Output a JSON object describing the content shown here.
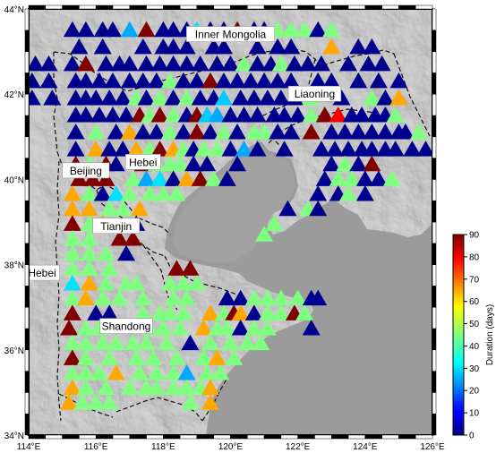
{
  "map": {
    "lon_range": [
      114,
      126
    ],
    "lat_range": [
      34,
      44
    ],
    "x_ticks": [
      "114°E",
      "116°E",
      "118°E",
      "120°E",
      "122°E",
      "124°E",
      "126°E"
    ],
    "y_ticks": [
      "34°N",
      "36°N",
      "38°N",
      "40°N",
      "42°N",
      "44°N"
    ],
    "x_tick_values": [
      114,
      116,
      118,
      120,
      122,
      124,
      126
    ],
    "y_tick_values": [
      34,
      36,
      38,
      40,
      42,
      44
    ]
  },
  "places": [
    {
      "name": "Inner Mongolia",
      "lon": 120.0,
      "lat": 43.4
    },
    {
      "name": "Liaoning",
      "lon": 122.5,
      "lat": 42.0
    },
    {
      "name": "Beijing",
      "lon": 115.7,
      "lat": 40.2
    },
    {
      "name": "Hebei",
      "lon": 117.4,
      "lat": 40.4
    },
    {
      "name": "Tianjin",
      "lon": 116.6,
      "lat": 38.9
    },
    {
      "name": "Hebei",
      "lon": 114.4,
      "lat": 37.8
    },
    {
      "name": "Shandong",
      "lon": 116.9,
      "lat": 36.55
    }
  ],
  "colorbar": {
    "label": "Duration (days)",
    "min": 0,
    "max": 90,
    "ticks": [
      "0",
      "10",
      "20",
      "30",
      "40",
      "50",
      "60",
      "70",
      "80",
      "90"
    ]
  },
  "stations": [
    [
      115.3,
      43.5,
      0
    ],
    [
      115.7,
      43.5,
      0
    ],
    [
      116.2,
      43.5,
      0
    ],
    [
      116.5,
      43.5,
      0
    ],
    [
      117.0,
      43.5,
      25
    ],
    [
      117.5,
      43.5,
      90
    ],
    [
      118.0,
      43.5,
      0
    ],
    [
      118.3,
      43.5,
      0
    ],
    [
      118.7,
      43.5,
      0
    ],
    [
      119.0,
      43.5,
      30
    ],
    [
      119.4,
      43.5,
      0
    ],
    [
      119.8,
      43.5,
      0
    ],
    [
      120.2,
      43.5,
      90
    ],
    [
      120.7,
      43.5,
      0
    ],
    [
      121.0,
      43.5,
      0
    ],
    [
      121.4,
      43.5,
      45
    ],
    [
      121.8,
      43.5,
      45
    ],
    [
      122.2,
      43.5,
      45
    ],
    [
      122.6,
      43.5,
      0
    ],
    [
      123.0,
      43.5,
      45
    ],
    [
      115.5,
      43.1,
      0
    ],
    [
      116.2,
      43.1,
      0
    ],
    [
      117.4,
      43.1,
      0
    ],
    [
      118.0,
      43.1,
      0
    ],
    [
      118.3,
      43.1,
      0
    ],
    [
      118.7,
      43.1,
      0
    ],
    [
      119.5,
      43.1,
      0
    ],
    [
      119.8,
      43.1,
      0
    ],
    [
      120.8,
      43.1,
      0
    ],
    [
      121.4,
      43.1,
      0
    ],
    [
      121.8,
      43.1,
      0
    ],
    [
      123.0,
      43.1,
      65
    ],
    [
      123.8,
      43.1,
      0
    ],
    [
      124.2,
      43.1,
      0
    ],
    [
      114.2,
      42.7,
      0
    ],
    [
      114.6,
      42.7,
      0
    ],
    [
      115.3,
      42.7,
      0
    ],
    [
      115.7,
      42.7,
      90
    ],
    [
      116.3,
      42.7,
      0
    ],
    [
      116.7,
      42.7,
      0
    ],
    [
      117.0,
      42.7,
      0
    ],
    [
      117.5,
      42.7,
      0
    ],
    [
      117.9,
      42.7,
      0
    ],
    [
      118.3,
      42.7,
      0
    ],
    [
      118.7,
      42.7,
      0
    ],
    [
      119.1,
      42.7,
      0
    ],
    [
      119.6,
      42.7,
      0
    ],
    [
      120.0,
      42.7,
      0
    ],
    [
      120.4,
      42.7,
      45
    ],
    [
      120.8,
      42.7,
      0
    ],
    [
      121.2,
      42.7,
      0
    ],
    [
      121.5,
      42.7,
      45
    ],
    [
      121.9,
      42.7,
      0
    ],
    [
      122.3,
      42.7,
      0
    ],
    [
      122.7,
      42.7,
      0
    ],
    [
      123.5,
      42.7,
      0
    ],
    [
      124.1,
      42.7,
      0
    ],
    [
      124.5,
      42.7,
      0
    ],
    [
      114.1,
      42.3,
      0
    ],
    [
      114.6,
      42.3,
      0
    ],
    [
      115.4,
      42.3,
      0
    ],
    [
      115.7,
      42.3,
      0
    ],
    [
      116.1,
      42.3,
      0
    ],
    [
      116.5,
      42.3,
      0
    ],
    [
      117.0,
      42.3,
      0
    ],
    [
      117.4,
      42.3,
      0
    ],
    [
      117.8,
      42.3,
      0
    ],
    [
      118.2,
      42.3,
      45
    ],
    [
      118.6,
      42.3,
      0
    ],
    [
      119.0,
      42.3,
      0
    ],
    [
      119.4,
      42.3,
      90
    ],
    [
      119.8,
      42.3,
      0
    ],
    [
      120.2,
      42.3,
      0
    ],
    [
      120.6,
      42.3,
      0
    ],
    [
      121.0,
      42.3,
      0
    ],
    [
      121.4,
      42.3,
      0
    ],
    [
      121.8,
      42.3,
      0
    ],
    [
      122.6,
      42.3,
      0
    ],
    [
      123.0,
      42.3,
      0
    ],
    [
      123.8,
      42.3,
      0
    ],
    [
      124.4,
      42.3,
      0
    ],
    [
      125.0,
      42.3,
      0
    ],
    [
      114.1,
      41.9,
      0
    ],
    [
      114.7,
      41.9,
      0
    ],
    [
      115.4,
      41.9,
      0
    ],
    [
      115.7,
      41.9,
      0
    ],
    [
      116.0,
      41.9,
      0
    ],
    [
      116.4,
      41.9,
      0
    ],
    [
      116.8,
      41.9,
      0
    ],
    [
      117.2,
      41.9,
      45
    ],
    [
      117.5,
      41.9,
      0
    ],
    [
      117.9,
      41.9,
      45
    ],
    [
      118.3,
      41.9,
      0
    ],
    [
      118.7,
      41.9,
      45
    ],
    [
      119.1,
      41.9,
      0
    ],
    [
      119.5,
      41.9,
      0
    ],
    [
      119.8,
      41.9,
      28
    ],
    [
      120.3,
      41.9,
      0
    ],
    [
      120.7,
      41.9,
      0
    ],
    [
      121.1,
      41.9,
      0
    ],
    [
      121.5,
      41.9,
      0
    ],
    [
      121.9,
      41.9,
      0
    ],
    [
      122.4,
      41.9,
      45
    ],
    [
      123.3,
      41.9,
      0
    ],
    [
      124.2,
      41.9,
      45
    ],
    [
      124.6,
      41.9,
      0
    ],
    [
      125.0,
      41.9,
      65
    ],
    [
      115.4,
      41.5,
      0
    ],
    [
      115.7,
      41.5,
      0
    ],
    [
      116.1,
      41.5,
      0
    ],
    [
      116.5,
      41.5,
      0
    ],
    [
      116.9,
      41.5,
      0
    ],
    [
      117.3,
      41.5,
      90
    ],
    [
      117.6,
      41.5,
      45
    ],
    [
      117.9,
      41.5,
      90
    ],
    [
      118.3,
      41.5,
      45
    ],
    [
      118.7,
      41.5,
      0
    ],
    [
      119.0,
      41.5,
      90
    ],
    [
      119.3,
      41.5,
      28
    ],
    [
      119.6,
      41.5,
      25
    ],
    [
      120.0,
      41.5,
      0
    ],
    [
      120.4,
      41.5,
      0
    ],
    [
      120.8,
      41.5,
      0
    ],
    [
      121.3,
      41.5,
      0
    ],
    [
      121.6,
      41.5,
      0
    ],
    [
      122.0,
      41.5,
      0
    ],
    [
      122.4,
      41.5,
      45
    ],
    [
      122.8,
      41.5,
      90
    ],
    [
      123.2,
      41.5,
      80
    ],
    [
      123.6,
      41.5,
      0
    ],
    [
      123.9,
      41.5,
      0
    ],
    [
      124.3,
      41.5,
      0
    ],
    [
      124.6,
      41.5,
      0
    ],
    [
      124.9,
      41.5,
      45
    ],
    [
      115.4,
      41.1,
      0
    ],
    [
      116.0,
      41.1,
      45
    ],
    [
      116.6,
      41.1,
      0
    ],
    [
      117.0,
      41.1,
      65
    ],
    [
      117.4,
      41.1,
      0
    ],
    [
      117.8,
      41.1,
      0
    ],
    [
      118.2,
      41.1,
      45
    ],
    [
      118.6,
      41.1,
      0
    ],
    [
      119.0,
      41.1,
      90
    ],
    [
      119.4,
      41.1,
      0
    ],
    [
      119.8,
      41.1,
      45
    ],
    [
      120.2,
      41.1,
      0
    ],
    [
      120.7,
      41.1,
      45
    ],
    [
      121.0,
      41.1,
      45
    ],
    [
      121.4,
      41.1,
      0
    ],
    [
      121.8,
      41.1,
      0
    ],
    [
      122.4,
      41.1,
      90
    ],
    [
      123.0,
      41.1,
      0
    ],
    [
      123.4,
      41.1,
      0
    ],
    [
      123.8,
      41.1,
      0
    ],
    [
      124.2,
      41.1,
      0
    ],
    [
      124.6,
      41.1,
      0
    ],
    [
      125.0,
      41.1,
      0
    ],
    [
      125.2,
      41.1,
      0
    ],
    [
      125.6,
      41.1,
      45
    ],
    [
      115.4,
      40.7,
      0
    ],
    [
      116.0,
      40.7,
      65
    ],
    [
      116.4,
      40.7,
      0
    ],
    [
      116.8,
      40.7,
      0
    ],
    [
      117.2,
      40.7,
      65
    ],
    [
      117.6,
      40.7,
      45
    ],
    [
      117.9,
      40.7,
      90
    ],
    [
      118.3,
      40.7,
      65
    ],
    [
      118.6,
      40.7,
      45
    ],
    [
      118.9,
      40.7,
      0
    ],
    [
      119.2,
      40.7,
      45
    ],
    [
      119.6,
      40.7,
      45
    ],
    [
      120.0,
      40.7,
      0
    ],
    [
      120.4,
      40.7,
      25
    ],
    [
      120.8,
      40.7,
      0
    ],
    [
      121.6,
      40.7,
      0
    ],
    [
      122.7,
      40.7,
      0
    ],
    [
      123.1,
      40.7,
      0
    ],
    [
      123.5,
      40.7,
      0
    ],
    [
      123.9,
      40.7,
      0
    ],
    [
      124.2,
      40.7,
      0
    ],
    [
      124.6,
      40.7,
      0
    ],
    [
      124.9,
      40.7,
      0
    ],
    [
      125.4,
      40.7,
      0
    ],
    [
      125.8,
      40.7,
      0
    ],
    [
      115.4,
      40.35,
      90
    ],
    [
      115.8,
      40.35,
      45
    ],
    [
      116.3,
      40.35,
      90
    ],
    [
      116.6,
      40.35,
      0
    ],
    [
      117.4,
      40.35,
      90
    ],
    [
      117.8,
      40.35,
      45
    ],
    [
      118.2,
      40.35,
      45
    ],
    [
      118.5,
      40.35,
      45
    ],
    [
      118.9,
      40.35,
      0
    ],
    [
      119.3,
      40.35,
      0
    ],
    [
      120.2,
      40.35,
      0
    ],
    [
      123.0,
      40.35,
      0
    ],
    [
      123.4,
      40.35,
      45
    ],
    [
      123.8,
      40.35,
      0
    ],
    [
      124.2,
      40.35,
      90
    ],
    [
      115.5,
      40.0,
      90
    ],
    [
      115.9,
      40.0,
      90
    ],
    [
      116.3,
      40.0,
      90
    ],
    [
      117.1,
      40.0,
      45
    ],
    [
      117.5,
      40.0,
      25
    ],
    [
      117.9,
      40.0,
      30
    ],
    [
      118.3,
      40.0,
      0
    ],
    [
      118.7,
      40.0,
      65
    ],
    [
      119.1,
      40.0,
      90
    ],
    [
      119.5,
      40.0,
      45
    ],
    [
      119.9,
      40.0,
      0
    ],
    [
      122.8,
      40.0,
      0
    ],
    [
      123.2,
      40.0,
      45
    ],
    [
      123.6,
      40.0,
      45
    ],
    [
      124.0,
      40.0,
      0
    ],
    [
      124.4,
      40.0,
      0
    ],
    [
      124.8,
      40.0,
      45
    ],
    [
      115.3,
      39.65,
      65
    ],
    [
      115.8,
      39.65,
      45
    ],
    [
      116.2,
      39.65,
      0
    ],
    [
      116.6,
      39.65,
      30
    ],
    [
      117.0,
      39.65,
      45
    ],
    [
      117.6,
      39.65,
      45
    ],
    [
      118.0,
      39.65,
      45
    ],
    [
      118.4,
      39.65,
      45
    ],
    [
      122.6,
      39.65,
      0
    ],
    [
      123.2,
      39.65,
      0
    ],
    [
      123.5,
      39.65,
      45
    ],
    [
      124.0,
      39.65,
      0
    ],
    [
      115.3,
      39.3,
      65
    ],
    [
      115.8,
      39.3,
      65
    ],
    [
      116.4,
      39.3,
      45
    ],
    [
      116.8,
      39.3,
      45
    ],
    [
      117.3,
      39.3,
      65
    ],
    [
      121.7,
      39.3,
      0
    ],
    [
      122.3,
      39.3,
      45
    ],
    [
      122.6,
      39.3,
      0
    ],
    [
      115.3,
      38.95,
      90
    ],
    [
      115.8,
      38.95,
      45
    ],
    [
      116.2,
      38.95,
      65
    ],
    [
      117.2,
      38.95,
      0
    ],
    [
      121.3,
      38.95,
      45
    ],
    [
      115.3,
      38.6,
      45
    ],
    [
      115.8,
      38.6,
      45
    ],
    [
      116.7,
      38.6,
      90
    ],
    [
      117.1,
      38.6,
      90
    ],
    [
      121.0,
      38.7,
      45
    ],
    [
      115.3,
      38.25,
      45
    ],
    [
      115.8,
      38.25,
      45
    ],
    [
      116.3,
      38.25,
      45
    ],
    [
      116.9,
      38.25,
      0
    ],
    [
      115.3,
      37.9,
      45
    ],
    [
      115.8,
      37.9,
      45
    ],
    [
      116.4,
      37.9,
      45
    ],
    [
      118.4,
      37.9,
      90
    ],
    [
      118.8,
      37.9,
      90
    ],
    [
      115.3,
      37.55,
      30
    ],
    [
      115.8,
      37.55,
      65
    ],
    [
      116.3,
      37.55,
      45
    ],
    [
      116.9,
      37.55,
      45
    ],
    [
      117.2,
      37.55,
      45
    ],
    [
      118.2,
      37.55,
      45
    ],
    [
      118.6,
      37.55,
      45
    ],
    [
      119.0,
      37.55,
      45
    ],
    [
      115.3,
      37.2,
      45
    ],
    [
      115.7,
      37.2,
      65
    ],
    [
      116.2,
      37.2,
      45
    ],
    [
      116.7,
      37.2,
      45
    ],
    [
      117.4,
      37.2,
      45
    ],
    [
      118.3,
      37.2,
      45
    ],
    [
      118.7,
      37.2,
      45
    ],
    [
      119.9,
      37.2,
      0
    ],
    [
      120.3,
      37.2,
      0
    ],
    [
      120.7,
      37.2,
      45
    ],
    [
      121.1,
      37.2,
      45
    ],
    [
      121.5,
      37.2,
      45
    ],
    [
      122.0,
      37.2,
      45
    ],
    [
      122.4,
      37.2,
      0
    ],
    [
      122.6,
      37.2,
      0
    ],
    [
      115.3,
      36.85,
      90
    ],
    [
      116.0,
      36.85,
      0
    ],
    [
      116.4,
      36.85,
      0
    ],
    [
      117.4,
      36.85,
      45
    ],
    [
      117.9,
      36.85,
      45
    ],
    [
      118.2,
      36.85,
      45
    ],
    [
      118.6,
      36.85,
      45
    ],
    [
      119.4,
      36.85,
      65
    ],
    [
      119.8,
      36.85,
      45
    ],
    [
      120.1,
      36.85,
      90
    ],
    [
      120.3,
      36.85,
      65
    ],
    [
      120.7,
      36.85,
      0
    ],
    [
      121.1,
      36.85,
      45
    ],
    [
      121.5,
      36.85,
      45
    ],
    [
      121.9,
      36.85,
      90
    ],
    [
      122.2,
      36.85,
      45
    ],
    [
      115.2,
      36.5,
      90
    ],
    [
      115.7,
      36.5,
      45
    ],
    [
      116.1,
      36.5,
      45
    ],
    [
      117.6,
      36.5,
      45
    ],
    [
      118.0,
      36.5,
      45
    ],
    [
      118.5,
      36.5,
      45
    ],
    [
      119.2,
      36.5,
      65
    ],
    [
      119.6,
      36.5,
      45
    ],
    [
      119.9,
      36.5,
      45
    ],
    [
      120.3,
      36.5,
      0
    ],
    [
      120.7,
      36.5,
      45
    ],
    [
      121.1,
      36.5,
      45
    ],
    [
      122.4,
      36.5,
      0
    ],
    [
      115.3,
      36.15,
      45
    ],
    [
      115.7,
      36.15,
      45
    ],
    [
      116.2,
      36.15,
      45
    ],
    [
      116.6,
      36.15,
      45
    ],
    [
      117.1,
      36.15,
      45
    ],
    [
      117.5,
      36.15,
      45
    ],
    [
      118.1,
      36.15,
      45
    ],
    [
      118.8,
      36.15,
      0
    ],
    [
      119.4,
      36.15,
      45
    ],
    [
      120.0,
      36.15,
      45
    ],
    [
      120.5,
      36.15,
      45
    ],
    [
      120.9,
      36.15,
      45
    ],
    [
      115.3,
      35.8,
      90
    ],
    [
      115.7,
      35.8,
      45
    ],
    [
      116.4,
      35.8,
      45
    ],
    [
      117.2,
      35.8,
      45
    ],
    [
      117.7,
      35.8,
      45
    ],
    [
      118.4,
      35.8,
      45
    ],
    [
      119.2,
      35.8,
      45
    ],
    [
      119.6,
      35.8,
      65
    ],
    [
      120.1,
      35.8,
      45
    ],
    [
      115.3,
      35.45,
      45
    ],
    [
      115.7,
      35.45,
      45
    ],
    [
      116.1,
      35.45,
      45
    ],
    [
      116.6,
      35.45,
      65
    ],
    [
      117.3,
      35.45,
      45
    ],
    [
      117.8,
      35.45,
      45
    ],
    [
      118.3,
      35.45,
      45
    ],
    [
      118.7,
      35.45,
      25
    ],
    [
      119.3,
      35.45,
      45
    ],
    [
      119.7,
      35.45,
      45
    ],
    [
      115.3,
      35.1,
      65
    ],
    [
      115.7,
      35.1,
      45
    ],
    [
      116.3,
      35.1,
      45
    ],
    [
      117.0,
      35.1,
      45
    ],
    [
      117.5,
      35.1,
      45
    ],
    [
      117.8,
      35.1,
      45
    ],
    [
      118.3,
      35.1,
      45
    ],
    [
      118.7,
      35.1,
      45
    ],
    [
      119.1,
      35.1,
      45
    ],
    [
      119.4,
      35.1,
      65
    ],
    [
      115.2,
      34.75,
      65
    ],
    [
      115.6,
      34.75,
      45
    ],
    [
      116.0,
      34.75,
      45
    ],
    [
      116.4,
      34.75,
      45
    ],
    [
      118.8,
      34.75,
      45
    ],
    [
      119.4,
      34.75,
      65
    ]
  ]
}
